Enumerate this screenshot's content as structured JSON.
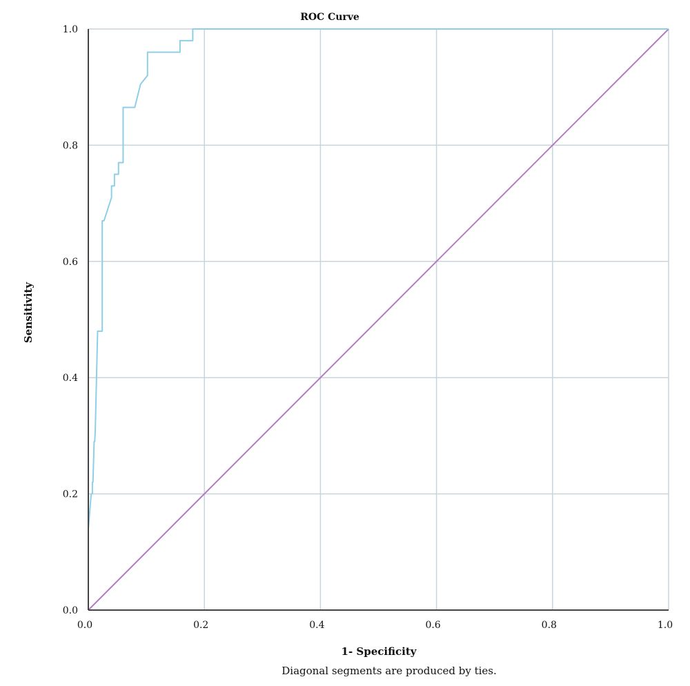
{
  "chart_data": {
    "type": "line",
    "title": "ROC Curve",
    "xlabel": "1- Specificity",
    "ylabel": "Sensitivity",
    "footnote": "Diagonal segments are produced by ties.",
    "xlim": [
      0,
      1
    ],
    "ylim": [
      0,
      1
    ],
    "x_ticks": [
      "0.0",
      "0.2",
      "0.4",
      "0.6",
      "0.8",
      "1.0"
    ],
    "y_ticks": [
      "0.0",
      "0.2",
      "0.4",
      "0.6",
      "0.8",
      "1.0"
    ],
    "grid": true,
    "colors": {
      "roc": "#8ecfe6",
      "reference": "#b47cc0",
      "grid": "#c8d4dc",
      "axis": "#444444"
    },
    "series": [
      {
        "x": [
          0.0,
          0.0,
          0.005,
          0.007,
          0.007,
          0.008,
          0.01,
          0.011,
          0.012,
          0.012,
          0.016,
          0.016,
          0.024,
          0.024,
          0.027,
          0.027,
          0.04,
          0.04,
          0.045,
          0.045,
          0.052,
          0.052,
          0.06,
          0.06,
          0.08,
          0.09,
          0.102,
          0.102,
          0.158,
          0.158,
          0.18,
          0.18,
          1.0
        ],
        "y": [
          0.0,
          0.14,
          0.2,
          0.2,
          0.22,
          0.22,
          0.29,
          0.29,
          0.31,
          0.31,
          0.48,
          0.48,
          0.48,
          0.67,
          0.67,
          0.67,
          0.71,
          0.73,
          0.73,
          0.75,
          0.75,
          0.77,
          0.77,
          0.865,
          0.865,
          0.905,
          0.92,
          0.96,
          0.96,
          0.98,
          0.98,
          1.0,
          1.0
        ]
      },
      {
        "x": [
          0,
          1
        ],
        "y": [
          0,
          1
        ]
      }
    ]
  }
}
